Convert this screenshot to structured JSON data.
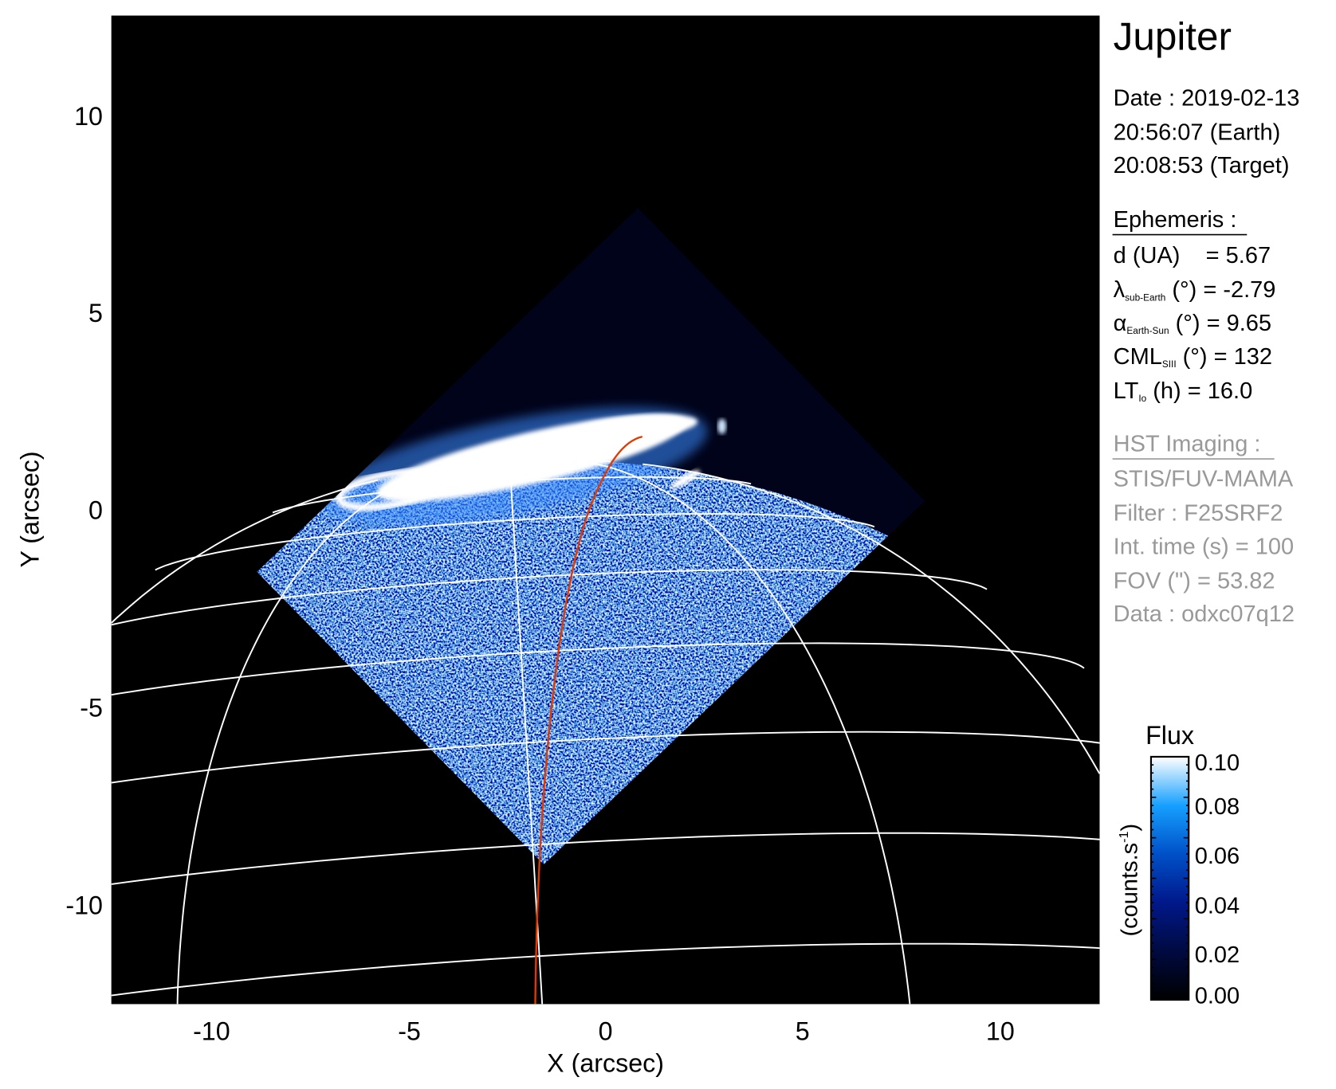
{
  "chart_data": {
    "type": "heatmap",
    "xlabel": "X (arcsec)",
    "ylabel": "Y (arcsec)",
    "xlim": [
      -12.5,
      12.5
    ],
    "ylim": [
      -12.5,
      12.5
    ],
    "xticks": [
      "-10",
      "-5",
      "0",
      "5",
      "10"
    ],
    "xtick_values": [
      -10,
      -5,
      0,
      5,
      10
    ],
    "yticks": [
      "10",
      "5",
      "0",
      "-5",
      "-10"
    ],
    "ytick_values": [
      10,
      5,
      0,
      -5,
      -10
    ],
    "grid": true,
    "colorbar": {
      "title": "Flux",
      "unit_label": "(counts.s",
      "unit_exp": "-1",
      "unit_close": ")",
      "range": [
        0.0,
        0.1
      ],
      "ticks": [
        "0.10",
        "0.08",
        "0.06",
        "0.04",
        "0.02",
        "0.00"
      ],
      "tick_values": [
        0.1,
        0.08,
        0.06,
        0.04,
        0.02,
        0.0
      ],
      "colormap": [
        "#000000",
        "#000a40",
        "#00188a",
        "#0050c8",
        "#16a0ff",
        "#ffffff"
      ]
    },
    "colors": {
      "background": "#000000",
      "grid": "#ffffff",
      "meridian": "#e03a00",
      "secondary_text": "#999999"
    }
  },
  "panel": {
    "title": "Jupiter",
    "date": "Date : 2019-02-13",
    "time_earth": "20:56:07 (Earth)",
    "time_target": "20:08:53 (Target)",
    "ephemeris": {
      "heading": "Ephemeris :",
      "d": "d (UA)    = 5.67",
      "lambda_sym": "λ",
      "lambda_sub": "sub-Earth",
      "lambda_val": " (°) = -2.79",
      "alpha_sym": "α",
      "alpha_sub": "Earth-Sun",
      "alpha_val": " (°) = 9.65",
      "cml_sym": "CML",
      "cml_sub": "SIII",
      "cml_val": " (°) = 132",
      "lt_sym": "LT",
      "lt_sub": "Io",
      "lt_val": " (h) = 16.0"
    },
    "hst": {
      "heading": "HST Imaging :",
      "instrument": "STIS/FUV-MAMA",
      "filter": "Filter : F25SRF2",
      "int_time": "Int. time (s) = 100",
      "fov": "FOV (\") = 53.82",
      "data": "Data : odxc07q12"
    }
  }
}
